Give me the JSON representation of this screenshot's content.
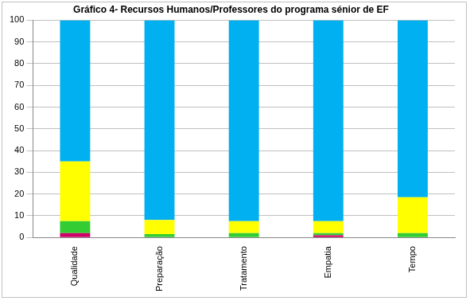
{
  "chart_data": {
    "type": "bar",
    "title": "Gráfico 4- Recursos Humanos/Professores do programa sénior de EF",
    "categories": [
      "Qualidade",
      "Preparação",
      "Tratamento",
      "Empatia",
      "Tempo"
    ],
    "stacked": true,
    "series": [
      {
        "color": "#cc0066",
        "values": [
          2,
          0,
          0,
          1,
          0
        ]
      },
      {
        "color": "#33cc33",
        "values": [
          5.5,
          1.5,
          2,
          1,
          2
        ]
      },
      {
        "color": "#ffff00",
        "values": [
          27.5,
          6.5,
          5.5,
          5.5,
          16.5
        ]
      },
      {
        "color": "#00b0f0",
        "values": [
          65,
          92,
          92.5,
          92.5,
          81.5
        ]
      }
    ],
    "ylim": [
      0,
      100
    ],
    "yticks": [
      0,
      10,
      20,
      30,
      40,
      50,
      60,
      70,
      80,
      90,
      100
    ],
    "grid": true
  }
}
